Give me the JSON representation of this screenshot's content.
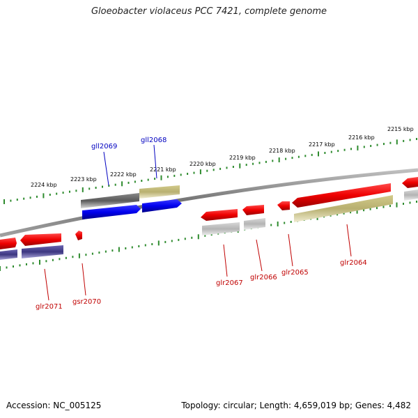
{
  "title": "Gloeobacter violaceus PCC 7421, complete genome",
  "accession": "Accession: NC_005125",
  "topology": "Topology: circular; Length: 4,659,019 bp; Genes: 4,482",
  "colors": {
    "forward_tick": "#2e8b2e",
    "backbone": "#808080",
    "label_blue": "#0000c0",
    "label_red": "#c00000"
  },
  "ruler": {
    "labels": [
      "2224 kbp",
      "2223 kbp",
      "2222 kbp",
      "2221 kbp",
      "2220 kbp",
      "2219 kbp",
      "2218 kbp",
      "2217 kbp",
      "2216 kbp",
      "2215 kbp"
    ]
  },
  "genes": {
    "upper": [
      {
        "name": "gll2069",
        "strand": "reverse",
        "color": "#5a5a5a",
        "role": "homolog"
      },
      {
        "name": "gll2068",
        "strand": "reverse",
        "color": "#b8b070",
        "role": "homolog"
      }
    ],
    "upper_blue": [
      {
        "strand": "forward",
        "color": "#0000dd"
      },
      {
        "strand": "forward",
        "color": "#0000dd"
      }
    ],
    "lower": [
      {
        "name": "glr2071",
        "color": "#dd0000"
      },
      {
        "name": "gsr2070",
        "color": "#dd0000"
      },
      {
        "name": "glr2067",
        "color": "#dd0000"
      },
      {
        "name": "glr2066",
        "color": "#dd0000"
      },
      {
        "name": "glr2065",
        "color": "#dd0000"
      },
      {
        "name": "glr2064",
        "color": "#dd0000"
      }
    ]
  }
}
